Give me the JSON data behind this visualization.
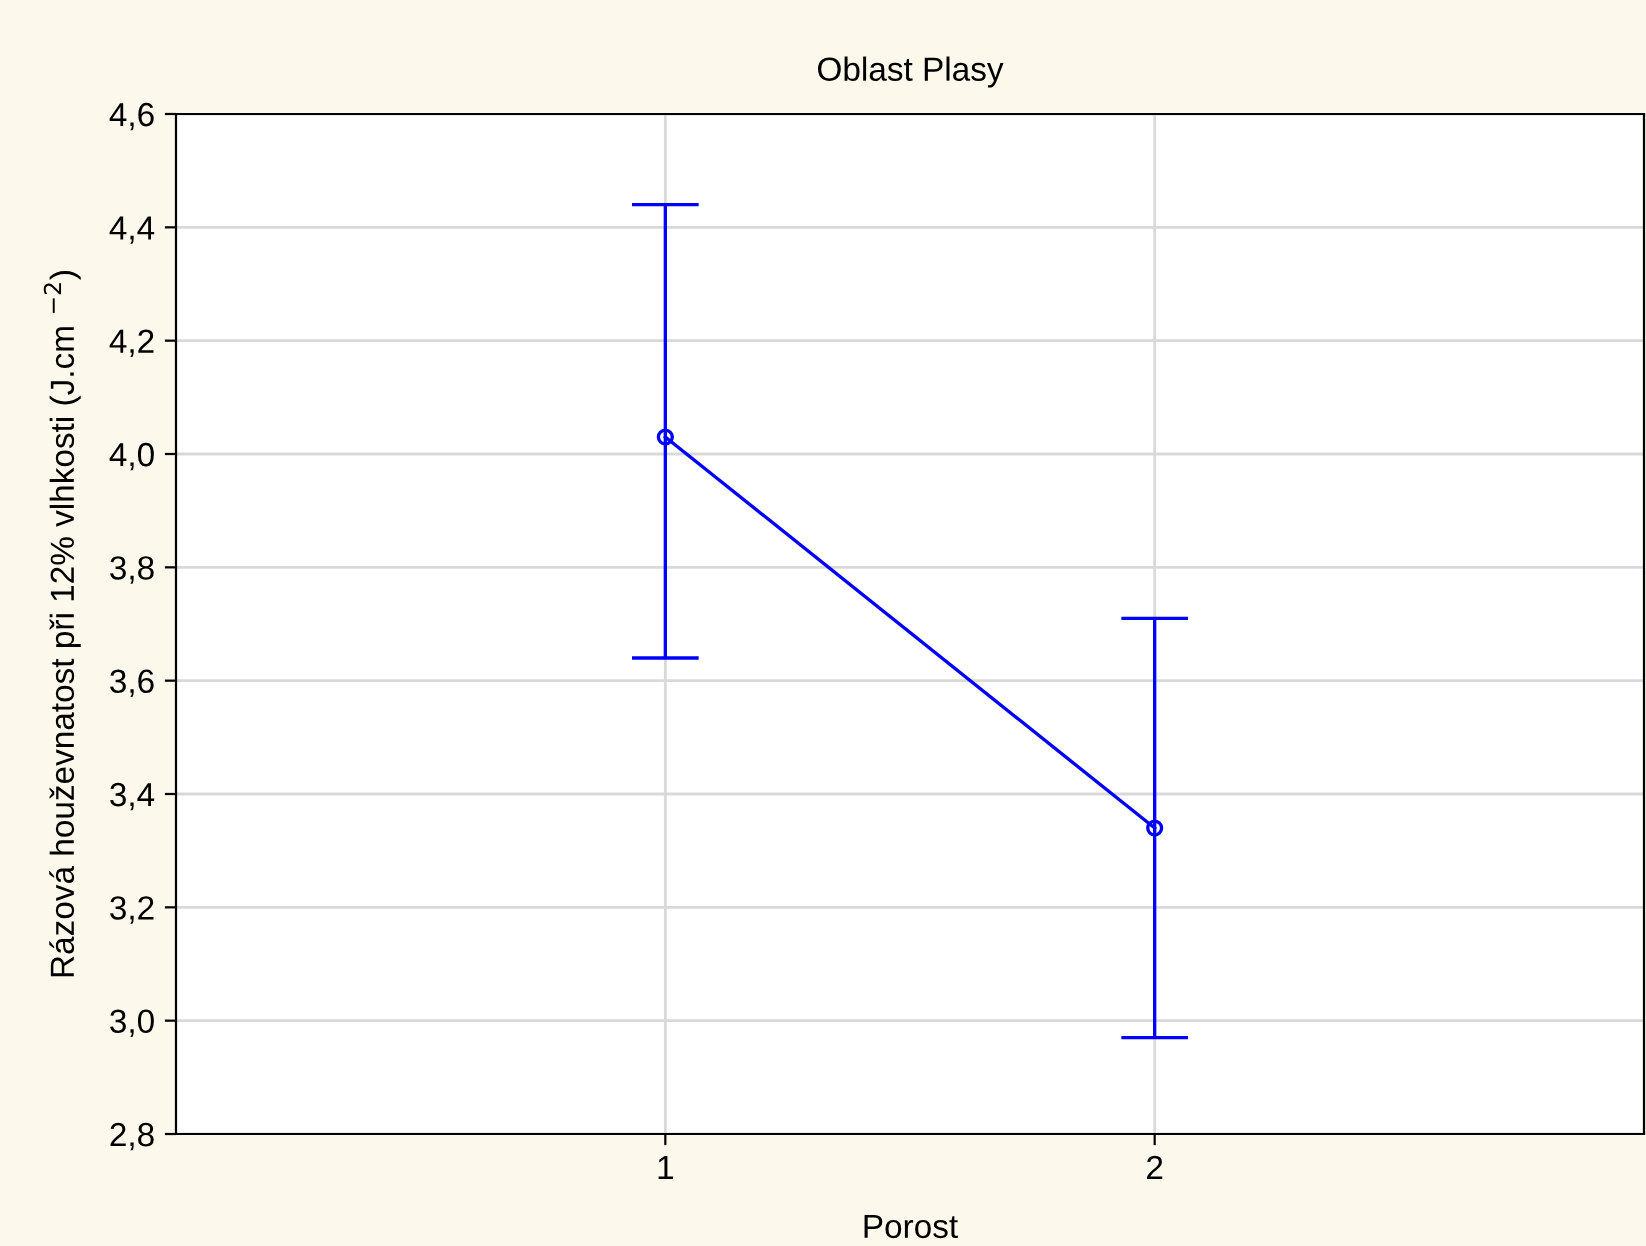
{
  "chart_data": {
    "type": "line",
    "title": "Oblast Plasy",
    "xlabel": "Porost",
    "ylabel": "Rázová houževnatost při 12% vlhkosti (J.cm $^{−2}$)",
    "categories": [
      "1",
      "2"
    ],
    "series": [
      {
        "color": "#0000ff",
        "values": [
          4.03,
          3.34
        ],
        "errors": [
          [
            3.64,
            4.44
          ],
          [
            2.97,
            3.71
          ]
        ]
      }
    ],
    "ylim": [
      2.8,
      4.6
    ],
    "yticks": [
      {
        "value": 2.8,
        "label": "2,8"
      },
      {
        "value": 3.0,
        "label": "3,0"
      },
      {
        "value": 3.2,
        "label": "3,2"
      },
      {
        "value": 3.4,
        "label": "3,4"
      },
      {
        "value": 3.6,
        "label": "3,6"
      },
      {
        "value": 3.8,
        "label": "3,8"
      },
      {
        "value": 4.0,
        "label": "4,0"
      },
      {
        "value": 4.2,
        "label": "4,2"
      },
      {
        "value": 4.4,
        "label": "4,4"
      },
      {
        "value": 4.6,
        "label": "4,6"
      }
    ],
    "grid": true,
    "marker": "circle",
    "line_style": "solid",
    "legend": false
  }
}
